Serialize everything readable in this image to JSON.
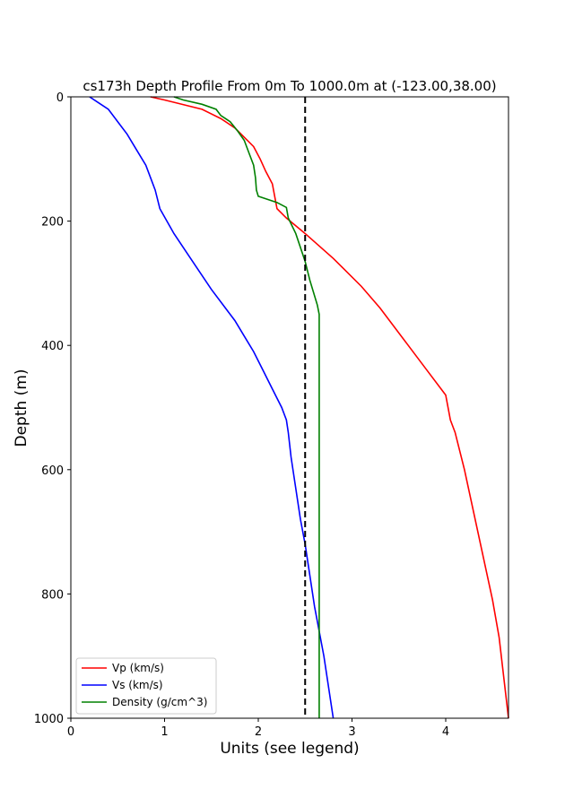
{
  "chart_data": {
    "type": "line",
    "title": "cs173h Depth Profile From 0m To 1000.0m at (-123.00,38.00)",
    "xlabel": "Units (see legend)",
    "ylabel": "Depth (m)",
    "xlim": [
      0,
      4.67
    ],
    "ylim": [
      1000,
      0
    ],
    "y_inverted": true,
    "x_ticks": [
      0,
      1,
      2,
      3,
      4
    ],
    "y_ticks": [
      0,
      200,
      400,
      600,
      800,
      1000
    ],
    "grid": false,
    "legend_position": "lower-left",
    "reference_line": {
      "x": 2.5,
      "style": "dashed",
      "color": "#000000"
    },
    "series": [
      {
        "name": "Vp (km/s)",
        "color": "#ff0000",
        "x": [
          0.85,
          1.0,
          1.4,
          1.6,
          1.75,
          1.85,
          1.95,
          2.02,
          2.08,
          2.15,
          2.2,
          2.3,
          2.5,
          2.8,
          3.1,
          3.3,
          3.4,
          3.6,
          3.8,
          4.0,
          4.05,
          4.1,
          4.2,
          4.3,
          4.4,
          4.5,
          4.57,
          4.67
        ],
        "y": [
          0,
          5,
          20,
          35,
          50,
          65,
          80,
          100,
          120,
          140,
          180,
          195,
          220,
          260,
          305,
          340,
          360,
          400,
          440,
          480,
          520,
          540,
          600,
          670,
          740,
          810,
          870,
          1000
        ]
      },
      {
        "name": "Vs (km/s)",
        "color": "#0000ff",
        "x": [
          0.2,
          0.3,
          0.4,
          0.5,
          0.6,
          0.7,
          0.8,
          0.85,
          0.9,
          0.95,
          1.1,
          1.3,
          1.5,
          1.65,
          1.75,
          1.85,
          1.95,
          2.05,
          2.15,
          2.25,
          2.3,
          2.32,
          2.35,
          2.4,
          2.45,
          2.5,
          2.55,
          2.6,
          2.65,
          2.7,
          2.75,
          2.8
        ],
        "y": [
          0,
          10,
          20,
          40,
          60,
          85,
          110,
          130,
          150,
          180,
          220,
          265,
          310,
          340,
          360,
          385,
          410,
          440,
          470,
          500,
          520,
          540,
          580,
          630,
          680,
          720,
          770,
          820,
          860,
          900,
          950,
          1000
        ]
      },
      {
        "name": "Density (g/cm^3)",
        "color": "#008000",
        "x": [
          1.1,
          1.2,
          1.4,
          1.55,
          1.6,
          1.7,
          1.78,
          1.85,
          1.9,
          1.95,
          1.97,
          1.98,
          2.0,
          2.2,
          2.3,
          2.32,
          2.4,
          2.5,
          2.55,
          2.6,
          2.63,
          2.65,
          2.65,
          2.65,
          2.65
        ],
        "y": [
          0,
          5,
          12,
          20,
          30,
          40,
          55,
          70,
          90,
          110,
          130,
          150,
          160,
          170,
          178,
          195,
          220,
          265,
          295,
          320,
          335,
          350,
          360,
          600,
          1000
        ]
      }
    ]
  }
}
